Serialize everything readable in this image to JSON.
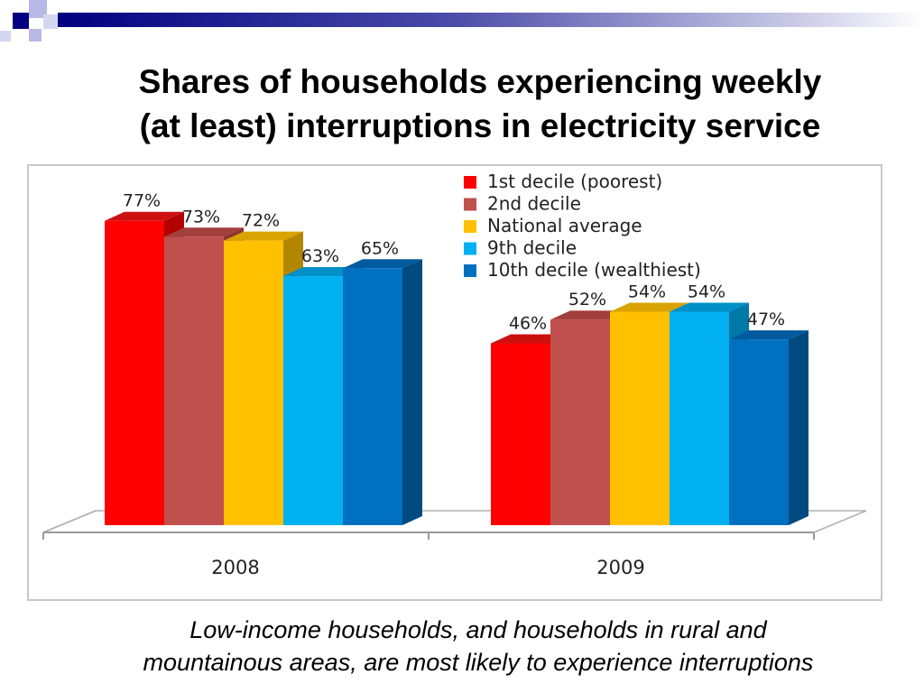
{
  "slide": {
    "title_line1": "Shares of households experiencing weekly",
    "title_line2": "(at least) interruptions in electricity service",
    "caption_line1": "Low-income households, and households in rural and",
    "caption_line2": "mountainous areas, are most likely to experience interruptions"
  },
  "chart_data": {
    "type": "bar",
    "categories": [
      "2008",
      "2009"
    ],
    "series": [
      {
        "name": "1st decile (poorest)",
        "values": [
          77,
          46
        ],
        "color": "#ff0000",
        "side_color": "#b30000",
        "top_color": "#cc1010"
      },
      {
        "name": "2nd decile",
        "values": [
          73,
          52
        ],
        "color": "#c0504d",
        "side_color": "#8c3431",
        "top_color": "#a33f3c"
      },
      {
        "name": "National average",
        "values": [
          72,
          54
        ],
        "color": "#ffc000",
        "side_color": "#b38600",
        "top_color": "#d9a300"
      },
      {
        "name": "9th decile",
        "values": [
          63,
          54
        ],
        "color": "#00b0f0",
        "side_color": "#0078a8",
        "top_color": "#0090c8"
      },
      {
        "name": "10th decile (wealthiest)",
        "values": [
          65,
          47
        ],
        "color": "#0070c0",
        "side_color": "#004a80",
        "top_color": "#005aa0"
      }
    ],
    "data_labels": [
      [
        "77%",
        "73%",
        "72%",
        "63%",
        "65%"
      ],
      [
        "46%",
        "52%",
        "54%",
        "54%",
        "47%"
      ]
    ],
    "ylim": [
      0,
      100
    ],
    "grid": false,
    "legend_position": "top-right",
    "three_d": true
  }
}
